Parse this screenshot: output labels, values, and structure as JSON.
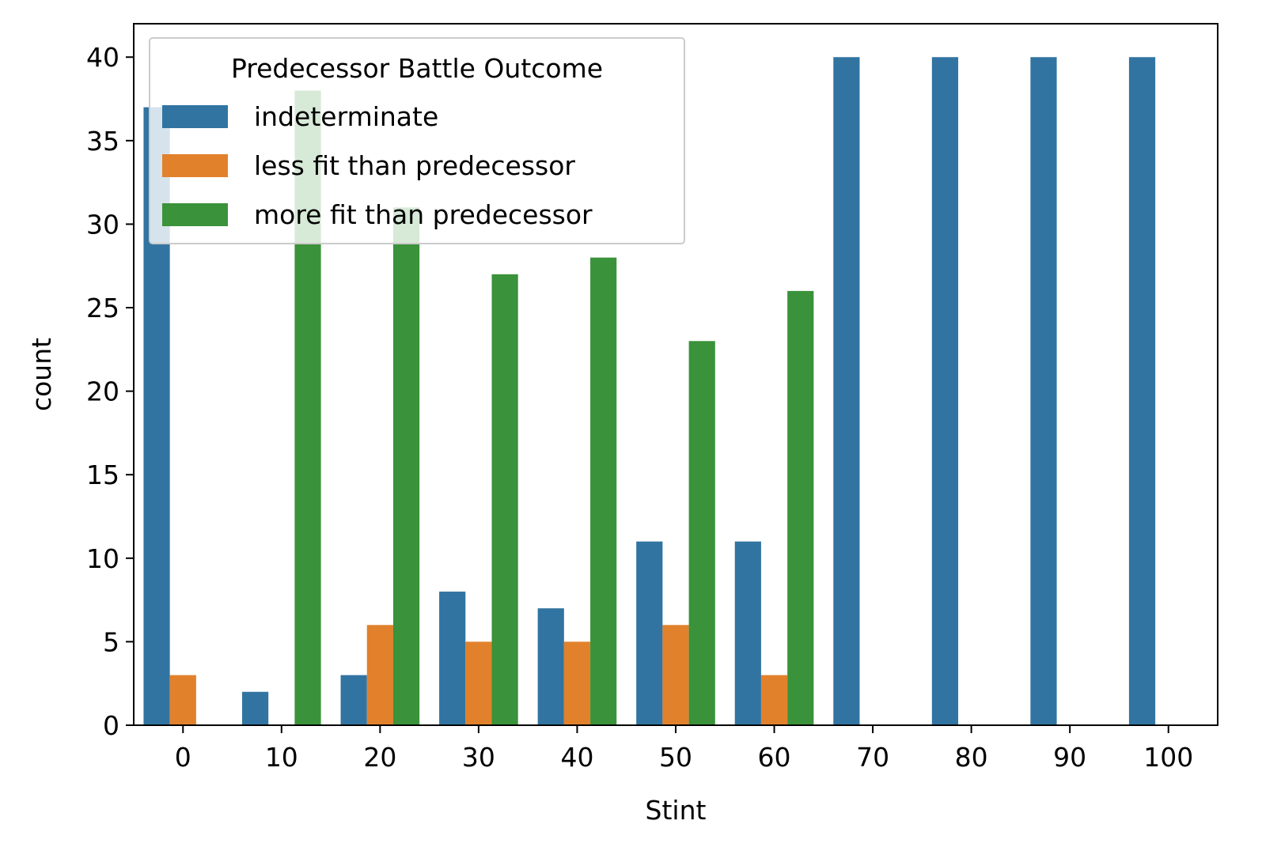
{
  "chart_data": {
    "type": "bar",
    "xlabel": "Stint",
    "ylabel": "count",
    "categories": [
      "0",
      "10",
      "20",
      "30",
      "40",
      "50",
      "60",
      "70",
      "80",
      "90",
      "100"
    ],
    "ylim": [
      0,
      42
    ],
    "yticks": [
      0,
      5,
      10,
      15,
      20,
      25,
      30,
      35,
      40
    ],
    "legend": {
      "title": "Predecessor Battle Outcome",
      "placement": "upper-left"
    },
    "series": [
      {
        "name": "indeterminate",
        "color": "#3274a1",
        "values": [
          37,
          2,
          3,
          8,
          7,
          11,
          11,
          40,
          40,
          40,
          40
        ]
      },
      {
        "name": "less fit than predecessor",
        "color": "#e1812c",
        "values": [
          3,
          0,
          6,
          5,
          5,
          6,
          3,
          0,
          0,
          0,
          0
        ]
      },
      {
        "name": "more fit than predecessor",
        "color": "#3a923a",
        "values": [
          0,
          38,
          31,
          27,
          28,
          23,
          26,
          0,
          0,
          0,
          0
        ]
      }
    ],
    "grid": false
  }
}
